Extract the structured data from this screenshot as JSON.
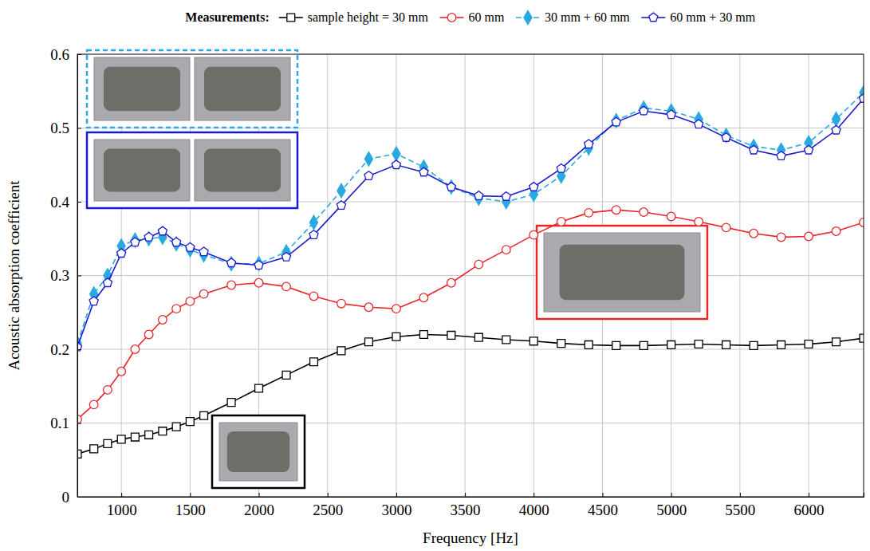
{
  "chart_data": {
    "type": "line",
    "legend_title": "Measurements:",
    "x_label": "Frequency [Hz]",
    "y_label": "Acoustic absorption coefficient",
    "x": [
      680,
      800,
      900,
      1000,
      1100,
      1200,
      1300,
      1400,
      1500,
      1600,
      1800,
      2000,
      2200,
      2400,
      2600,
      2800,
      3000,
      3200,
      3400,
      3600,
      3800,
      4000,
      4200,
      4400,
      4600,
      4800,
      5000,
      5200,
      5400,
      5600,
      5800,
      6000,
      6200,
      6400
    ],
    "series": [
      {
        "name": "sample height = 30 mm",
        "color": "#000000",
        "marker": "square",
        "line_style": "solid",
        "values": [
          0.058,
          0.065,
          0.072,
          0.078,
          0.081,
          0.084,
          0.089,
          0.095,
          0.102,
          0.11,
          0.128,
          0.147,
          0.165,
          0.183,
          0.198,
          0.21,
          0.217,
          0.22,
          0.219,
          0.216,
          0.213,
          0.211,
          0.208,
          0.206,
          0.205,
          0.205,
          0.206,
          0.207,
          0.206,
          0.205,
          0.206,
          0.207,
          0.21,
          0.215
        ]
      },
      {
        "name": "60 mm",
        "color": "#e8262a",
        "marker": "circle",
        "line_style": "solid",
        "values": [
          0.105,
          0.125,
          0.145,
          0.17,
          0.2,
          0.22,
          0.24,
          0.255,
          0.265,
          0.275,
          0.287,
          0.29,
          0.285,
          0.272,
          0.262,
          0.257,
          0.255,
          0.27,
          0.29,
          0.315,
          0.335,
          0.355,
          0.373,
          0.385,
          0.389,
          0.386,
          0.38,
          0.373,
          0.365,
          0.357,
          0.352,
          0.353,
          0.36,
          0.372
        ]
      },
      {
        "name": "30 mm + 60 mm",
        "color": "#29a9e0",
        "marker": "diamond",
        "line_style": "dashed",
        "values": [
          0.208,
          0.275,
          0.3,
          0.34,
          0.348,
          0.35,
          0.352,
          0.343,
          0.335,
          0.328,
          0.316,
          0.316,
          0.332,
          0.372,
          0.415,
          0.458,
          0.465,
          0.447,
          0.42,
          0.405,
          0.4,
          0.41,
          0.435,
          0.473,
          0.51,
          0.527,
          0.523,
          0.512,
          0.49,
          0.475,
          0.47,
          0.48,
          0.512,
          0.548
        ]
      },
      {
        "name": "60 mm + 30 mm",
        "color": "#1c1ccc",
        "marker": "pentagon",
        "line_style": "solid",
        "values": [
          0.203,
          0.265,
          0.29,
          0.33,
          0.345,
          0.352,
          0.36,
          0.345,
          0.338,
          0.332,
          0.317,
          0.314,
          0.325,
          0.355,
          0.395,
          0.435,
          0.45,
          0.44,
          0.42,
          0.408,
          0.407,
          0.42,
          0.445,
          0.478,
          0.508,
          0.523,
          0.518,
          0.505,
          0.487,
          0.47,
          0.462,
          0.47,
          0.497,
          0.54
        ]
      }
    ],
    "xlim": [
      680,
      6400
    ],
    "xticks": [
      1000,
      1500,
      2000,
      2500,
      3000,
      3500,
      4000,
      4500,
      5000,
      5500,
      6000
    ],
    "ylim": [
      0,
      0.6
    ],
    "yticks": [
      0,
      0.1,
      0.2,
      0.3,
      0.4,
      0.5,
      0.6
    ],
    "grid": true,
    "legend": "top"
  }
}
